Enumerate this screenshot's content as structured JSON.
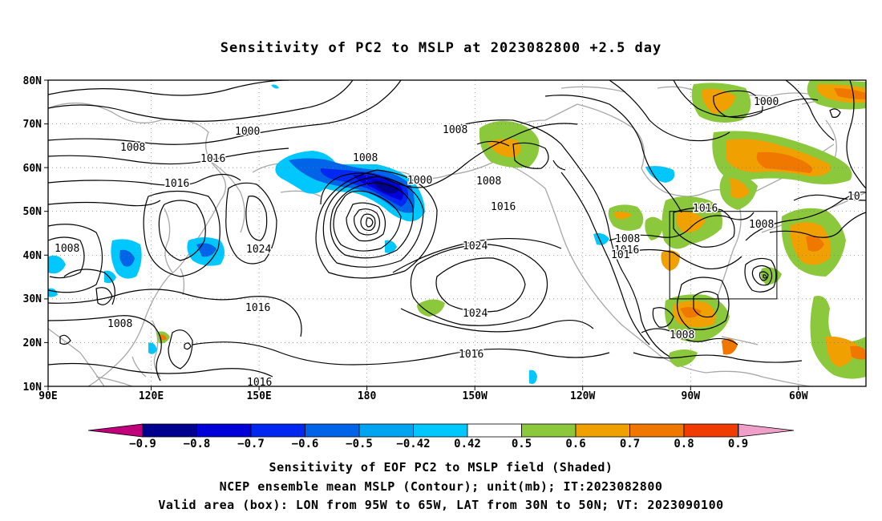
{
  "title": "Sensitivity of PC2 to MSLP at 2023082800 +2.5 day",
  "lat_labels": [
    "80N",
    "70N",
    "60N",
    "50N",
    "40N",
    "30N",
    "20N",
    "10N"
  ],
  "lon_labels": [
    "90E",
    "120E",
    "150E",
    "180",
    "150W",
    "120W",
    "90W",
    "60W"
  ],
  "colorbar": {
    "tick_labels": [
      "-0.9",
      "-0.8",
      "-0.7",
      "-0.6",
      "-0.5",
      "-0.42",
      "0.42",
      "0.5",
      "0.6",
      "0.7",
      "0.8",
      "0.9"
    ],
    "colors": [
      "#c0007a",
      "#00008f",
      "#0000d8",
      "#0028f0",
      "#0064e8",
      "#00a4f0",
      "#00c8ff",
      "#ffffff",
      "#8cc83c",
      "#f0a000",
      "#f07800",
      "#f03c00",
      "#f00000",
      "#f0a0c8"
    ]
  },
  "contour_labels": [
    {
      "text": "1000"
    },
    {
      "text": "1008"
    },
    {
      "text": "1016"
    },
    {
      "text": "1016"
    },
    {
      "text": "1008"
    },
    {
      "text": "1008"
    },
    {
      "text": "1000"
    },
    {
      "text": "1008"
    },
    {
      "text": "1016"
    },
    {
      "text": "1024"
    },
    {
      "text": "1016"
    },
    {
      "text": "1008"
    },
    {
      "text": "1024"
    },
    {
      "text": "1016"
    },
    {
      "text": "1024"
    },
    {
      "text": "1016"
    },
    {
      "text": "1008"
    },
    {
      "text": "1000"
    },
    {
      "text": "1016"
    },
    {
      "text": "1008"
    },
    {
      "text": "1008"
    },
    {
      "text": "1016"
    },
    {
      "text": "101"
    },
    {
      "text": "1008"
    },
    {
      "text": "10"
    }
  ],
  "valid_box": {
    "lon_from": "95W",
    "lon_to": "65W",
    "lat_from": "30N",
    "lat_to": "50N"
  },
  "captions": [
    "Sensitivity of EOF PC2 to MSLP field (Shaded)",
    "NCEP ensemble mean MSLP (Contour); unit(mb); IT:2023082800",
    "Valid area (box): LON from 95W to 65W, LAT from 30N to 50N; VT: 2023090100"
  ]
}
